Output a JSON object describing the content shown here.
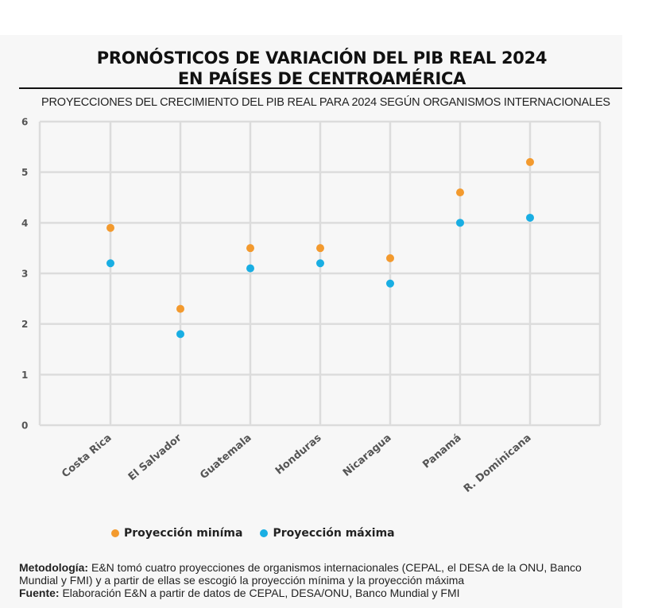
{
  "header": {
    "title_line1": "PRONÓSTICOS DE VARIACIÓN DEL PIB REAL 2024",
    "title_line2": "EN PAÍSES DE CENTROAMÉRICA"
  },
  "chart_data": {
    "type": "scatter",
    "title": "PRONÓSTICOS DE VARIACIÓN DEL PIB REAL 2024 EN PAÍSES DE CENTROAMÉRICA",
    "subtitle": "PROYECCIONES DEL CRECIMIENTO DEL PIB REAL PARA 2024 SEGÚN ORGANISMOS INTERNACIONALES",
    "xlabel": "",
    "ylabel": "",
    "categories": [
      "Costa Rica",
      "El Salvador",
      "Guatemala",
      "Honduras",
      "Nicaragua",
      "Panamá",
      "R. Dominicana"
    ],
    "series": [
      {
        "name": "Proyección miníma",
        "color": "#f39a2e",
        "values": [
          3.9,
          2.3,
          3.5,
          3.5,
          3.3,
          4.6,
          5.2
        ]
      },
      {
        "name": "Proyección máxima",
        "color": "#19aee3",
        "values": [
          3.2,
          1.8,
          3.1,
          3.2,
          2.8,
          4.0,
          4.1
        ]
      }
    ],
    "ylim": [
      0,
      6
    ],
    "yticks": [
      "0",
      "1",
      "2",
      "3",
      "4",
      "5",
      "6"
    ],
    "grid": true,
    "legend_position": "bottom"
  },
  "notes": {
    "method_label": "Metodología:",
    "method_text": " E&N tomó cuatro proyecciones de organismos internacionales (CEPAL, el DESA de la ONU, Banco Mundial y FMI) y a partir de ellas se escogió la proyección mínima y la proyección máxima",
    "source_label": "Fuente:",
    "source_text": " Elaboración E&N a partir de datos de CEPAL, DESA/ONU, Banco Mundial y FMI"
  },
  "colors": {
    "grid": "#dcdcdc",
    "axis_text": "#555555",
    "category_text": "#555555"
  }
}
